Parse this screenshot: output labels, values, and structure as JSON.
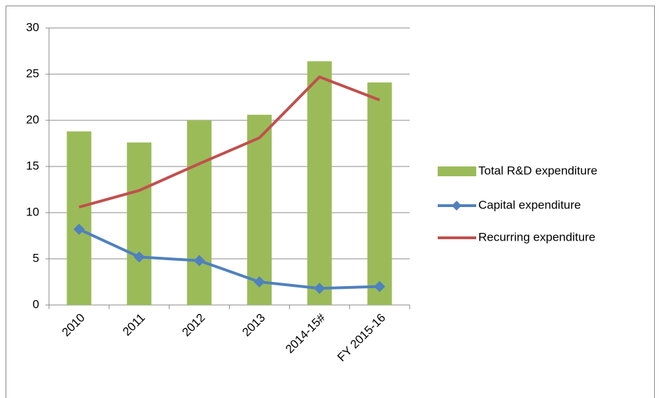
{
  "chart_data": {
    "type": "bar",
    "categories": [
      "2010",
      "2011",
      "2012",
      "2013",
      "2014-15#",
      "FY 2015-16"
    ],
    "series": [
      {
        "name": "Total R&D expenditure",
        "type": "bar",
        "color": "#9bbb59",
        "values": [
          18.8,
          17.6,
          20.0,
          20.6,
          26.4,
          24.1
        ]
      },
      {
        "name": "Capital expenditure",
        "type": "line",
        "marker": "diamond",
        "color": "#4f81bd",
        "values": [
          8.2,
          5.2,
          4.8,
          2.5,
          1.8,
          2.0
        ]
      },
      {
        "name": "Recurring expenditure",
        "type": "line",
        "color": "#c0504d",
        "values": [
          10.6,
          12.4,
          15.3,
          18.1,
          24.7,
          22.2
        ]
      }
    ],
    "ylim": [
      0,
      30
    ],
    "yticks": [
      0,
      5,
      10,
      15,
      20,
      25,
      30
    ],
    "grid": true,
    "legend": "right"
  }
}
